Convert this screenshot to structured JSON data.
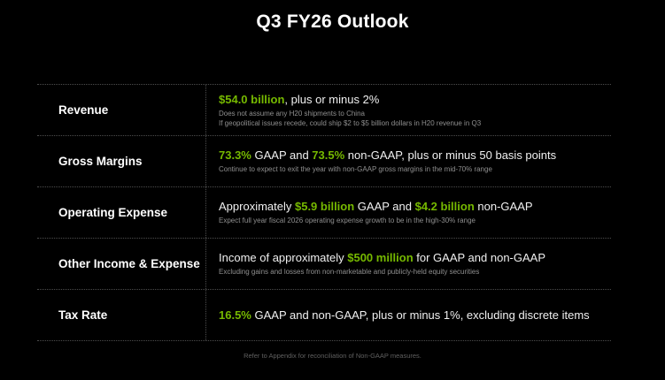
{
  "title": "Q3 FY26 Outlook",
  "footer": "Refer to Appendix for reconciliation of Non-GAAP measures.",
  "colors": {
    "background": "#000000",
    "accent_green": "#76B900",
    "text_primary": "#FFFFFF",
    "text_secondary": "#8F8F8F",
    "divider": "#4D4D4D"
  },
  "table": {
    "rows": [
      {
        "label": "Revenue",
        "segments": [
          {
            "text": "$54.0 billion",
            "highlight": true
          },
          {
            "text": ", plus or minus 2%",
            "highlight": false
          }
        ],
        "notes": [
          "Does not assume any H20 shipments to China",
          "If geopolitical issues recede, could ship $2 to $5 billion dollars in H20 revenue in Q3"
        ]
      },
      {
        "label": "Gross Margins",
        "segments": [
          {
            "text": "73.3%",
            "highlight": true
          },
          {
            "text": " GAAP and ",
            "highlight": false
          },
          {
            "text": "73.5%",
            "highlight": true
          },
          {
            "text": " non-GAAP, plus or minus 50 basis points",
            "highlight": false
          }
        ],
        "notes": [
          "Continue to expect to exit the year with non-GAAP gross margins in the mid-70% range"
        ]
      },
      {
        "label": "Operating Expense",
        "segments": [
          {
            "text": "Approximately ",
            "highlight": false
          },
          {
            "text": "$5.9 billion",
            "highlight": true
          },
          {
            "text": " GAAP and ",
            "highlight": false
          },
          {
            "text": "$4.2 billion",
            "highlight": true
          },
          {
            "text": " non-GAAP",
            "highlight": false
          }
        ],
        "notes": [
          "Expect full year fiscal 2026 operating expense growth to be in the high-30% range"
        ]
      },
      {
        "label": "Other Income & Expense",
        "segments": [
          {
            "text": "Income of approximately ",
            "highlight": false
          },
          {
            "text": "$500 million",
            "highlight": true
          },
          {
            "text": " for GAAP and non-GAAP",
            "highlight": false
          }
        ],
        "notes": [
          "Excluding gains and losses from non-marketable and publicly-held equity securities"
        ]
      },
      {
        "label": "Tax Rate",
        "segments": [
          {
            "text": "16.5%",
            "highlight": true
          },
          {
            "text": " GAAP and non-GAAP, plus or minus 1%, excluding discrete items",
            "highlight": false
          }
        ],
        "notes": []
      }
    ]
  }
}
